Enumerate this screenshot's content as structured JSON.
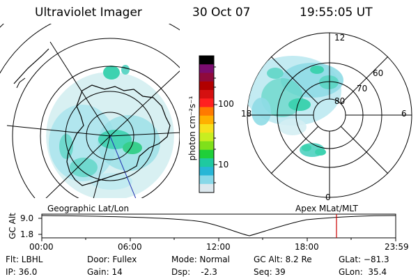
{
  "header": {
    "title": "Ultraviolet Imager",
    "date": "30 Oct 07",
    "time": "19:55:05 UT"
  },
  "colorbar": {
    "label": "photon cm⁻²s⁻¹",
    "ticks": [
      "100",
      "10"
    ],
    "colors": [
      "#000000",
      "#7a0c6e",
      "#8f0a3c",
      "#b10000",
      "#d51010",
      "#ff2020",
      "#ff7a00",
      "#ffb000",
      "#f7e11d",
      "#c8ee20",
      "#7fe01a",
      "#1fcf3a",
      "#1fc9a0",
      "#27b6d6",
      "#88d8e8",
      "#dce8ee"
    ]
  },
  "left_map": {
    "label": "Geographic Lat/Lon"
  },
  "right_map": {
    "label": "Apex MLat/MLT",
    "lat_labels": [
      "80",
      "70",
      "60"
    ],
    "mlt_labels": {
      "top": "12",
      "left": "18",
      "right": "6",
      "bottom": "0"
    }
  },
  "altitude_plot": {
    "ylabel": "GC Alt",
    "y_ticks": [
      "9.0",
      "1.8"
    ],
    "x_ticks": [
      "00:00",
      "06:00",
      "12:00",
      "18:00",
      "23:59"
    ],
    "marker_color": "#cc0000"
  },
  "info": {
    "flt": "Flt: LBHL",
    "ip": "IP: 36.0",
    "door": "Door: Fullex",
    "gain": "Gain: 14",
    "mode": "Mode: Normal",
    "dsp": "Dsp:    -2.3",
    "gcalt": "GC Alt: 8.2 Re",
    "seq": "Seq: 39",
    "glat": "GLat: −81.3",
    "glon": "GLon:  35.4"
  }
}
